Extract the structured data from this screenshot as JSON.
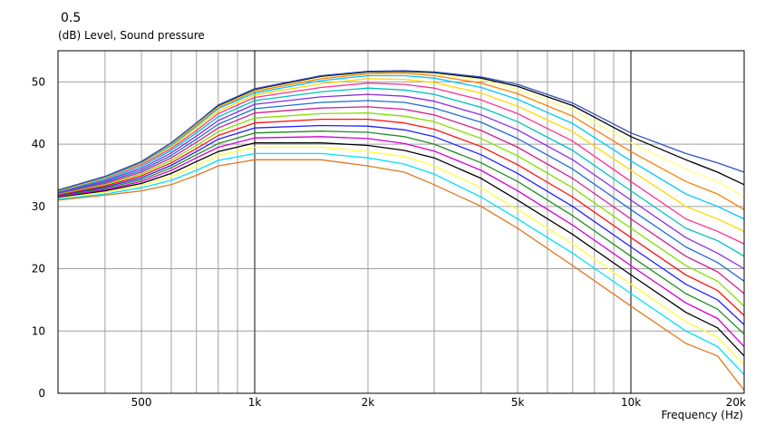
{
  "header": {
    "value_label": "0.5",
    "y_axis_label": "(dB)  Level, Sound pressure",
    "x_axis_label": "Frequency  (Hz)"
  },
  "chart_data": {
    "type": "line",
    "title": "",
    "xlabel": "Frequency  (Hz)",
    "ylabel": "(dB)  Level, Sound pressure",
    "x_scale": "log",
    "xlim": [
      300,
      20000
    ],
    "ylim": [
      0,
      55
    ],
    "grid": true,
    "x_tick_labels": [
      {
        "value": 500,
        "label": "500"
      },
      {
        "value": 1000,
        "label": "1k"
      },
      {
        "value": 2000,
        "label": "2k"
      },
      {
        "value": 5000,
        "label": "5k"
      },
      {
        "value": 10000,
        "label": "10k"
      },
      {
        "value": 20000,
        "label": "20k"
      }
    ],
    "y_ticks": [
      0,
      10,
      20,
      30,
      40,
      50
    ],
    "x": [
      300,
      400,
      500,
      600,
      700,
      800,
      1000,
      1500,
      2000,
      2500,
      3000,
      4000,
      5000,
      7000,
      10000,
      14000,
      17000,
      20000
    ],
    "series": [
      {
        "color": "#e07820",
        "values": [
          31.0,
          31.8,
          32.5,
          33.5,
          35.0,
          36.5,
          37.5,
          37.5,
          36.5,
          35.5,
          33.5,
          30.0,
          26.5,
          20.5,
          14.0,
          8.0,
          6.0,
          0.5
        ]
      },
      {
        "color": "#00e0ff",
        "values": [
          31.2,
          32.0,
          33.0,
          34.2,
          35.8,
          37.4,
          38.5,
          38.5,
          37.8,
          36.8,
          35.2,
          31.5,
          28.0,
          22.5,
          16.0,
          10.0,
          7.5,
          3.0
        ]
      },
      {
        "color": "#ffff40",
        "values": [
          31.4,
          32.3,
          33.4,
          34.8,
          36.5,
          38.2,
          39.5,
          39.5,
          38.8,
          38.0,
          36.5,
          33.0,
          29.5,
          24.0,
          17.5,
          11.5,
          9.0,
          4.5
        ]
      },
      {
        "color": "#000000",
        "values": [
          31.5,
          32.5,
          33.7,
          35.3,
          37.2,
          38.8,
          40.2,
          40.2,
          39.8,
          39.0,
          37.8,
          34.5,
          31.0,
          25.5,
          19.0,
          13.0,
          10.5,
          6.0
        ]
      },
      {
        "color": "#d000d0",
        "values": [
          31.6,
          32.7,
          34.0,
          35.8,
          37.8,
          39.5,
          41.0,
          41.2,
          40.9,
          40.1,
          38.9,
          35.8,
          32.5,
          27.0,
          20.5,
          14.5,
          12.0,
          7.5
        ]
      },
      {
        "color": "#228b22",
        "values": [
          31.7,
          32.9,
          34.3,
          36.2,
          38.3,
          40.1,
          41.8,
          42.1,
          41.9,
          41.2,
          40.0,
          37.0,
          34.0,
          28.5,
          22.0,
          16.0,
          13.5,
          9.5
        ]
      },
      {
        "color": "#2020ff",
        "values": [
          31.8,
          33.1,
          34.6,
          36.6,
          38.8,
          40.8,
          42.6,
          43.0,
          42.9,
          42.3,
          41.2,
          38.3,
          35.3,
          30.0,
          23.5,
          17.5,
          15.0,
          11.0
        ]
      },
      {
        "color": "#ff1010",
        "values": [
          31.9,
          33.3,
          34.9,
          37.0,
          39.3,
          41.4,
          43.4,
          44.0,
          44.0,
          43.4,
          42.4,
          39.6,
          36.7,
          31.5,
          25.0,
          19.0,
          16.5,
          12.5
        ]
      },
      {
        "color": "#80e000",
        "values": [
          32.0,
          33.5,
          35.2,
          37.4,
          39.8,
          42.0,
          44.2,
          44.9,
          45.0,
          44.5,
          43.6,
          40.9,
          38.1,
          33.0,
          26.5,
          20.5,
          18.0,
          14.0
        ]
      },
      {
        "color": "#d02090",
        "values": [
          32.1,
          33.7,
          35.5,
          37.8,
          40.3,
          42.6,
          45.0,
          45.8,
          46.0,
          45.6,
          44.7,
          42.2,
          39.5,
          34.5,
          28.0,
          22.0,
          19.5,
          16.0
        ]
      },
      {
        "color": "#1e6fd0",
        "values": [
          32.2,
          33.9,
          35.8,
          38.2,
          40.8,
          43.2,
          45.7,
          46.7,
          47.0,
          46.7,
          45.8,
          43.5,
          40.9,
          36.0,
          29.5,
          23.5,
          21.0,
          18.0
        ]
      },
      {
        "color": "#8a2be2",
        "values": [
          32.3,
          34.1,
          36.1,
          38.6,
          41.3,
          43.8,
          46.4,
          47.6,
          48.0,
          47.7,
          46.9,
          44.7,
          42.3,
          37.5,
          31.0,
          25.0,
          22.5,
          20.0
        ]
      },
      {
        "color": "#00c0c0",
        "values": [
          32.4,
          34.3,
          36.4,
          39.0,
          41.8,
          44.4,
          47.0,
          48.4,
          49.0,
          48.7,
          48.0,
          45.9,
          43.6,
          39.0,
          32.5,
          26.5,
          24.5,
          22.0
        ]
      },
      {
        "color": "#ff3090",
        "values": [
          32.5,
          34.5,
          36.7,
          39.3,
          42.2,
          44.9,
          47.5,
          49.1,
          49.8,
          49.6,
          49.0,
          47.1,
          44.9,
          40.5,
          34.0,
          28.0,
          26.0,
          24.0
        ]
      },
      {
        "color": "#ffd800",
        "values": [
          32.5,
          34.6,
          36.9,
          39.6,
          42.6,
          45.3,
          47.9,
          49.7,
          50.5,
          50.4,
          49.9,
          48.2,
          46.1,
          42.0,
          35.8,
          30.0,
          28.0,
          26.0
        ]
      },
      {
        "color": "#00c8ff",
        "values": [
          32.6,
          34.7,
          37.0,
          39.8,
          42.9,
          45.7,
          48.2,
          50.2,
          51.0,
          51.0,
          50.6,
          49.1,
          47.2,
          43.3,
          37.3,
          32.0,
          30.0,
          28.0
        ]
      },
      {
        "color": "#ff7f00",
        "values": [
          32.6,
          34.8,
          37.1,
          40.0,
          43.1,
          45.9,
          48.5,
          50.5,
          51.3,
          51.4,
          51.0,
          49.8,
          48.1,
          44.5,
          38.8,
          34.0,
          32.0,
          29.5
        ]
      },
      {
        "color": "#ffff80",
        "values": [
          32.6,
          34.8,
          37.2,
          40.1,
          43.3,
          46.1,
          48.7,
          50.8,
          51.5,
          51.6,
          51.3,
          50.3,
          48.8,
          45.5,
          40.2,
          36.0,
          34.0,
          31.5
        ]
      },
      {
        "color": "#000000",
        "values": [
          32.6,
          34.8,
          37.2,
          40.2,
          43.4,
          46.2,
          48.8,
          50.9,
          51.6,
          51.7,
          51.5,
          50.6,
          49.3,
          46.2,
          41.2,
          37.5,
          35.5,
          33.5
        ]
      },
      {
        "color": "#3050c0",
        "values": [
          32.6,
          34.8,
          37.2,
          40.2,
          43.4,
          46.3,
          48.9,
          51.0,
          51.7,
          51.8,
          51.6,
          50.8,
          49.6,
          46.6,
          41.8,
          38.5,
          37.0,
          35.5
        ]
      }
    ]
  }
}
